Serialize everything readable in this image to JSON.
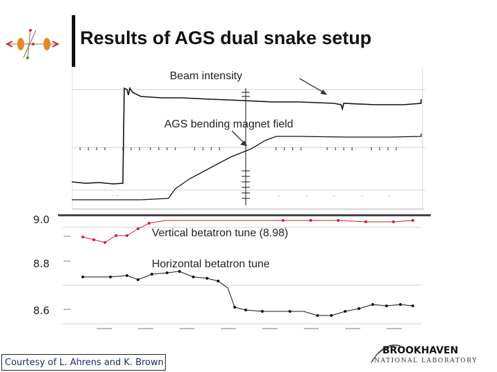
{
  "slide": {
    "title": "Results of AGS dual snake setup",
    "credit": "Courtesy of L. Ahrens and K. Brown"
  },
  "scope_panel": {
    "labels": {
      "beam_intensity": "Beam intensity",
      "bending_field": "AGS bending magnet field"
    }
  },
  "tune_panel": {
    "y_ticks": [
      "9.0",
      "8.8",
      "8.6"
    ],
    "labels": {
      "vertical": "Vertical betatron tune (8.98)",
      "horizontal": "Horizontal betatron tune"
    }
  },
  "logo": {
    "name": "BROOKHAVEN",
    "sub": "NATIONAL LABORATORY"
  },
  "colors": {
    "vertical_series": "#d22020",
    "horizontal_series": "#111111",
    "credit_text": "#1a2a6c"
  }
}
